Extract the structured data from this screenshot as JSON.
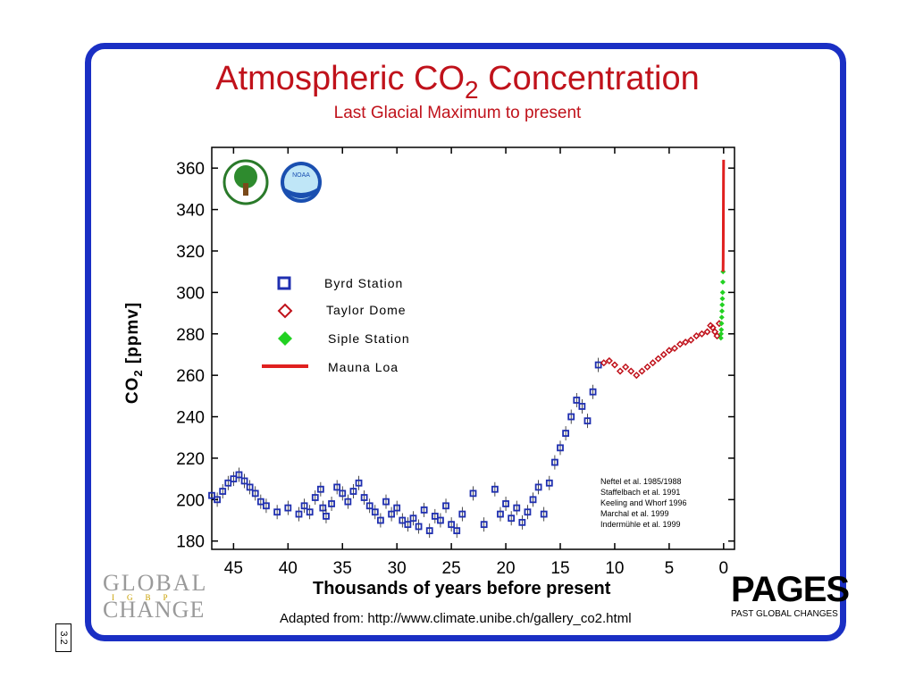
{
  "title": {
    "main": "Atmospheric CO",
    "sub": "2",
    "rest": " Concentration"
  },
  "subtitle": "Last Glacial Maximum to present",
  "ylabel": {
    "pre": "CO",
    "sub": "2",
    "post": " [ppmv]"
  },
  "source": "Adapted from: http://www.climate.unibe.ch/gallery_co2.html",
  "references": [
    "Neftel et al. 1985/1988",
    "Staffelbach et al. 1991",
    "Keeling and Whorf 1996",
    "Marchal et al. 1999",
    "Indermühle et al. 1999"
  ],
  "logos": {
    "global_change": "GLOBAL",
    "igbp": "IGBP",
    "change": "CHANGE",
    "pages": "PAGES",
    "pages_tag": "PAST GLOBAL CHANGES",
    "noaa": "NOAA"
  },
  "slide_number": "3.2",
  "colors": {
    "frame": "#1a2fc4",
    "title": "#c0121b",
    "byrd": "#1f2fb0",
    "taylor": "#c0121b",
    "siple": "#22d122",
    "mauna": "#e0201f"
  },
  "chart_data": {
    "type": "scatter",
    "title": "Atmospheric CO2 Concentration",
    "subtitle": "Last Glacial Maximum to present",
    "xlabel": "Thousands of years before present",
    "ylabel": "CO2 [ppmv]",
    "xlim": [
      47,
      -1
    ],
    "ylim": [
      176,
      370
    ],
    "xticks": [
      45,
      40,
      35,
      30,
      25,
      20,
      15,
      10,
      5,
      0
    ],
    "yticks": [
      180,
      200,
      220,
      240,
      260,
      280,
      300,
      320,
      340,
      360
    ],
    "legend_position": "upper-left",
    "series": [
      {
        "name": "Byrd Station",
        "marker": "square",
        "color": "#1f2fb0",
        "x": [
          47,
          46.5,
          46,
          45.5,
          45,
          44.5,
          44,
          43.5,
          43,
          42.5,
          42,
          41,
          40,
          39,
          38.5,
          38,
          37.5,
          37,
          36.8,
          36.5,
          36,
          35.5,
          35,
          34.5,
          34,
          33.5,
          33,
          32.5,
          32,
          31.5,
          31,
          30.5,
          30,
          29.5,
          29,
          28.5,
          28,
          27.5,
          27,
          26.5,
          26,
          25.5,
          25,
          24.5,
          24,
          23,
          22,
          21,
          20.5,
          20,
          19.5,
          19,
          18.5,
          18,
          17.5,
          17,
          16.5,
          16,
          15.5,
          15,
          14.5,
          14,
          13.5,
          13,
          12.5,
          12,
          11.5
        ],
        "y": [
          202,
          200,
          204,
          208,
          210,
          212,
          209,
          206,
          203,
          199,
          197,
          194,
          196,
          193,
          197,
          194,
          201,
          205,
          196,
          192,
          198,
          206,
          203,
          199,
          204,
          208,
          201,
          197,
          194,
          190,
          199,
          193,
          196,
          190,
          188,
          191,
          187,
          195,
          185,
          192,
          190,
          197,
          188,
          185,
          193,
          203,
          188,
          205,
          193,
          198,
          191,
          196,
          189,
          194,
          200,
          206,
          193,
          208,
          218,
          225,
          232,
          240,
          248,
          245,
          238,
          252,
          265
        ]
      },
      {
        "name": "Taylor Dome",
        "marker": "diamond-open",
        "color": "#c0121b",
        "x": [
          11,
          10.5,
          10,
          9.5,
          9,
          8.5,
          8,
          7.5,
          7,
          6.5,
          6,
          5.5,
          5,
          4.5,
          4,
          3.5,
          3,
          2.5,
          2,
          1.5,
          1.2,
          1,
          0.8,
          0.6,
          0.4
        ],
        "y": [
          266,
          267,
          265,
          262,
          264,
          262,
          260,
          262,
          264,
          266,
          268,
          270,
          272,
          273,
          275,
          276,
          277,
          279,
          280,
          281,
          284,
          283,
          281,
          279,
          285
        ]
      },
      {
        "name": "Siple Station",
        "marker": "diamond",
        "color": "#22d122",
        "x": [
          0.25,
          0.23,
          0.21,
          0.19,
          0.17,
          0.15,
          0.13,
          0.11,
          0.09,
          0.07,
          0.05
        ],
        "y": [
          278,
          280,
          282,
          285,
          288,
          291,
          294,
          297,
          300,
          305,
          310
        ]
      },
      {
        "name": "Mauna Loa",
        "marker": "line",
        "color": "#e0201f",
        "x": [
          0.05,
          0.04,
          0.03,
          0.02,
          0.01,
          0.0
        ],
        "y": [
          310,
          315,
          325,
          340,
          355,
          364
        ]
      }
    ]
  }
}
